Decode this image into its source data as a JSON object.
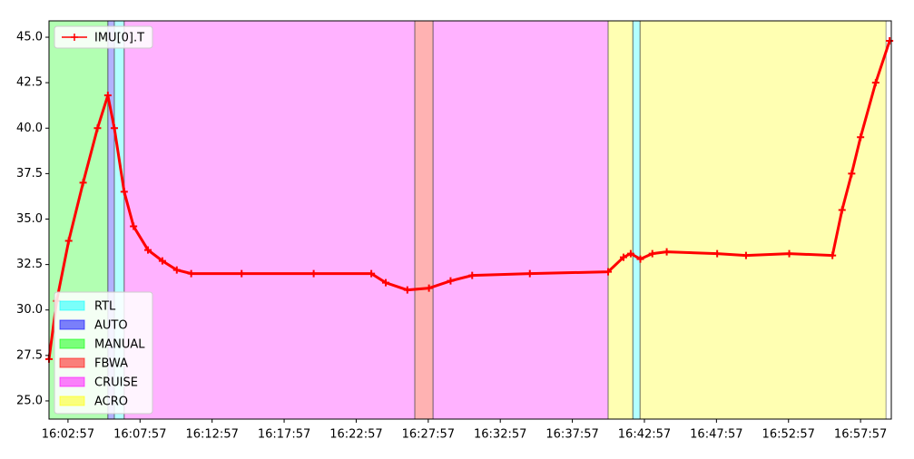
{
  "chart_data": {
    "type": "line",
    "xlim": [
      "16:01:38",
      "17:00:05"
    ],
    "xticks": [
      "16:02:57",
      "16:07:57",
      "16:12:57",
      "16:17:57",
      "16:22:57",
      "16:27:57",
      "16:32:57",
      "16:37:57",
      "16:42:57",
      "16:47:57",
      "16:52:57",
      "16:57:57"
    ],
    "ylim": [
      24.0,
      45.9
    ],
    "yticks": [
      {
        "value": 25,
        "label": "25.0"
      },
      27.5,
      {
        "value": 30,
        "label": "30.0"
      },
      32.5,
      {
        "value": 35,
        "label": "35.0"
      },
      37.5,
      {
        "value": 40,
        "label": "40.0"
      },
      42.5,
      {
        "value": 45,
        "label": "45.0"
      }
    ],
    "x": [
      "16:01:38",
      "16:02:10",
      "16:03:00",
      "16:04:00",
      "16:05:00",
      "16:05:43",
      "16:06:10",
      "16:06:51",
      "16:07:30",
      "16:08:30",
      "16:09:30",
      "16:10:30",
      "16:11:30",
      "16:15:00",
      "16:20:00",
      "16:24:00",
      "16:25:00",
      "16:26:30",
      "16:28:00",
      "16:29:30",
      "16:31:00",
      "16:35:00",
      "16:40:26",
      "16:41:30",
      "16:42:00",
      "16:42:40",
      "16:43:30",
      "16:44:30",
      "16:48:00",
      "16:50:00",
      "16:53:00",
      "16:56:00",
      "16:56:40",
      "16:57:20",
      "16:57:57",
      "16:59:00",
      "16:59:58"
    ],
    "series": [
      {
        "name": "IMU[0].T",
        "color": "#ff0000",
        "values": [
          27.3,
          30.5,
          33.8,
          37.0,
          40.0,
          41.8,
          40.0,
          36.5,
          34.6,
          33.3,
          32.7,
          32.2,
          32.0,
          32.0,
          32.0,
          32.0,
          31.5,
          31.1,
          31.2,
          31.6,
          31.9,
          32.0,
          32.1,
          32.9,
          33.1,
          32.8,
          33.1,
          33.2,
          33.1,
          33.0,
          33.1,
          33.0,
          35.5,
          37.5,
          39.5,
          42.5,
          44.8
        ]
      }
    ],
    "modes": [
      {
        "name": "RTL",
        "color": "#00ffff"
      },
      {
        "name": "AUTO",
        "color": "#0000ff"
      },
      {
        "name": "MANUAL",
        "color": "#00ff00"
      },
      {
        "name": "FBWA",
        "color": "#ff0000"
      },
      {
        "name": "CRUISE",
        "color": "#ff00ff"
      },
      {
        "name": "ACRO",
        "color": "#ffff00"
      }
    ],
    "spans": [
      {
        "mode": "MANUAL",
        "start": "16:01:38",
        "end": "16:05:43"
      },
      {
        "mode": "AUTO",
        "start": "16:05:43",
        "end": "16:06:10"
      },
      {
        "mode": "RTL",
        "start": "16:06:10",
        "end": "16:06:51"
      },
      {
        "mode": "CRUISE",
        "start": "16:06:51",
        "end": "16:27:01"
      },
      {
        "mode": "FBWA",
        "start": "16:27:01",
        "end": "16:28:17"
      },
      {
        "mode": "CRUISE",
        "start": "16:28:17",
        "end": "16:40:26"
      },
      {
        "mode": "ACRO",
        "start": "16:40:26",
        "end": "16:42:09"
      },
      {
        "mode": "RTL",
        "start": "16:42:09",
        "end": "16:42:39"
      },
      {
        "mode": "ACRO",
        "start": "16:42:39",
        "end": "16:59:43"
      }
    ],
    "legend_series": "upper left",
    "legend_modes": "lower left"
  }
}
